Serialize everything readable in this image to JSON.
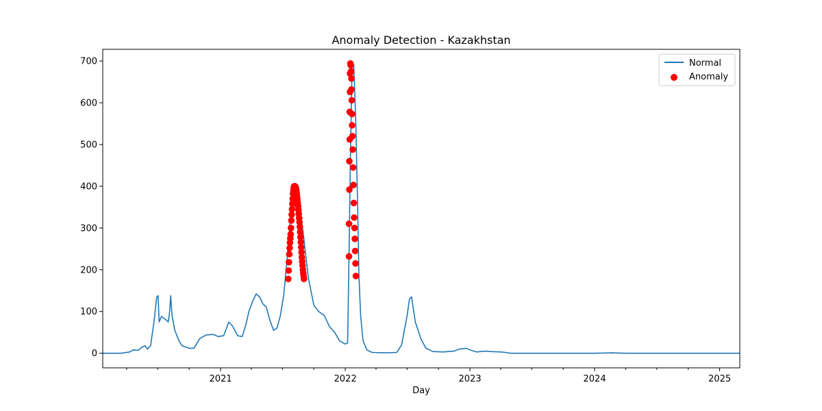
{
  "chart_data": {
    "type": "line",
    "title": "Anomaly Detection - Kazakhstan",
    "xlabel": "Day",
    "ylabel": "",
    "x_axis": {
      "kind": "date",
      "range": [
        "2020-01-22",
        "2025-03-01"
      ],
      "major_ticks": [
        "2021-01-01",
        "2022-01-01",
        "2023-01-01",
        "2024-01-01",
        "2025-01-01"
      ],
      "major_tick_labels": [
        "2021",
        "2022",
        "2023",
        "2024",
        "2025"
      ]
    },
    "y_axis": {
      "range": [
        -35,
        728
      ],
      "ticks": [
        0,
        100,
        200,
        300,
        400,
        500,
        600,
        700
      ],
      "tick_labels": [
        "0",
        "100",
        "200",
        "300",
        "400",
        "500",
        "600",
        "700"
      ]
    },
    "grid": false,
    "legend": {
      "position": "top-right",
      "entries": [
        "Normal",
        "Anomaly"
      ]
    },
    "colors": {
      "normal": "#1f77b4",
      "anomaly": "#ff0000"
    },
    "series": [
      {
        "name": "Normal",
        "kind": "line",
        "points": [
          [
            "2020-01-22",
            0
          ],
          [
            "2020-03-15",
            0
          ],
          [
            "2020-04-10",
            3
          ],
          [
            "2020-04-20",
            8
          ],
          [
            "2020-05-05",
            7
          ],
          [
            "2020-05-15",
            14
          ],
          [
            "2020-05-25",
            18
          ],
          [
            "2020-06-01",
            10
          ],
          [
            "2020-06-10",
            18
          ],
          [
            "2020-06-20",
            75
          ],
          [
            "2020-06-28",
            135
          ],
          [
            "2020-07-02",
            138
          ],
          [
            "2020-07-05",
            75
          ],
          [
            "2020-07-12",
            88
          ],
          [
            "2020-07-25",
            80
          ],
          [
            "2020-08-01",
            75
          ],
          [
            "2020-08-05",
            100
          ],
          [
            "2020-08-08",
            138
          ],
          [
            "2020-08-12",
            90
          ],
          [
            "2020-08-20",
            55
          ],
          [
            "2020-09-01",
            30
          ],
          [
            "2020-09-10",
            18
          ],
          [
            "2020-10-01",
            12
          ],
          [
            "2020-10-15",
            12
          ],
          [
            "2020-11-01",
            35
          ],
          [
            "2020-11-20",
            44
          ],
          [
            "2020-12-10",
            45
          ],
          [
            "2020-12-25",
            40
          ],
          [
            "2021-01-10",
            42
          ],
          [
            "2021-01-25",
            75
          ],
          [
            "2021-02-05",
            65
          ],
          [
            "2021-02-20",
            42
          ],
          [
            "2021-03-05",
            40
          ],
          [
            "2021-03-15",
            65
          ],
          [
            "2021-03-25",
            100
          ],
          [
            "2021-04-05",
            125
          ],
          [
            "2021-04-15",
            142
          ],
          [
            "2021-04-25",
            135
          ],
          [
            "2021-05-05",
            118
          ],
          [
            "2021-05-15",
            110
          ],
          [
            "2021-05-25",
            80
          ],
          [
            "2021-06-05",
            55
          ],
          [
            "2021-06-15",
            60
          ],
          [
            "2021-06-25",
            90
          ],
          [
            "2021-07-05",
            140
          ],
          [
            "2021-07-15",
            230
          ],
          [
            "2021-08-01",
            395
          ],
          [
            "2021-08-10",
            400
          ],
          [
            "2021-08-20",
            360
          ],
          [
            "2021-09-01",
            280
          ],
          [
            "2021-09-15",
            180
          ],
          [
            "2021-10-01",
            115
          ],
          [
            "2021-10-15",
            100
          ],
          [
            "2021-11-01",
            90
          ],
          [
            "2021-11-15",
            65
          ],
          [
            "2021-12-01",
            50
          ],
          [
            "2021-12-15",
            30
          ],
          [
            "2022-01-01",
            22
          ],
          [
            "2022-01-08",
            25
          ],
          [
            "2022-01-12",
            230
          ],
          [
            "2022-01-16",
            460
          ],
          [
            "2022-01-21",
            690
          ],
          [
            "2022-01-26",
            690
          ],
          [
            "2022-02-01",
            550
          ],
          [
            "2022-02-06",
            360
          ],
          [
            "2022-02-10",
            185
          ],
          [
            "2022-02-15",
            90
          ],
          [
            "2022-02-22",
            30
          ],
          [
            "2022-03-05",
            8
          ],
          [
            "2022-03-20",
            2
          ],
          [
            "2022-05-01",
            1
          ],
          [
            "2022-06-01",
            2
          ],
          [
            "2022-06-15",
            20
          ],
          [
            "2022-07-01",
            90
          ],
          [
            "2022-07-08",
            130
          ],
          [
            "2022-07-14",
            135
          ],
          [
            "2022-07-25",
            75
          ],
          [
            "2022-08-10",
            35
          ],
          [
            "2022-08-25",
            12
          ],
          [
            "2022-09-15",
            4
          ],
          [
            "2022-10-15",
            3
          ],
          [
            "2022-11-15",
            5
          ],
          [
            "2022-12-01",
            10
          ],
          [
            "2022-12-20",
            12
          ],
          [
            "2023-01-01",
            8
          ],
          [
            "2023-01-20",
            3
          ],
          [
            "2023-02-15",
            5
          ],
          [
            "2023-03-01",
            4
          ],
          [
            "2023-04-01",
            3
          ],
          [
            "2023-04-15",
            2
          ],
          [
            "2023-05-01",
            0
          ],
          [
            "2023-09-01",
            0
          ],
          [
            "2024-01-01",
            0
          ],
          [
            "2024-02-15",
            1
          ],
          [
            "2024-04-01",
            0
          ],
          [
            "2025-03-01",
            0
          ]
        ]
      },
      {
        "name": "Anomaly",
        "kind": "scatter",
        "points": [
          [
            "2021-07-18",
            178
          ],
          [
            "2021-07-19",
            198
          ],
          [
            "2021-07-20",
            218
          ],
          [
            "2021-07-21",
            237
          ],
          [
            "2021-07-22",
            252
          ],
          [
            "2021-07-23",
            265
          ],
          [
            "2021-07-24",
            275
          ],
          [
            "2021-07-25",
            285
          ],
          [
            "2021-07-26",
            300
          ],
          [
            "2021-07-27",
            318
          ],
          [
            "2021-07-28",
            332
          ],
          [
            "2021-07-29",
            345
          ],
          [
            "2021-07-30",
            358
          ],
          [
            "2021-07-31",
            370
          ],
          [
            "2021-08-01",
            382
          ],
          [
            "2021-08-02",
            390
          ],
          [
            "2021-08-03",
            396
          ],
          [
            "2021-08-04",
            399
          ],
          [
            "2021-08-05",
            400
          ],
          [
            "2021-08-06",
            400
          ],
          [
            "2021-08-07",
            400
          ],
          [
            "2021-08-08",
            399
          ],
          [
            "2021-08-09",
            397
          ],
          [
            "2021-08-10",
            393
          ],
          [
            "2021-08-11",
            388
          ],
          [
            "2021-08-12",
            382
          ],
          [
            "2021-08-13",
            375
          ],
          [
            "2021-08-14",
            368
          ],
          [
            "2021-08-15",
            360
          ],
          [
            "2021-08-16",
            352
          ],
          [
            "2021-08-17",
            343
          ],
          [
            "2021-08-18",
            334
          ],
          [
            "2021-08-19",
            324
          ],
          [
            "2021-08-20",
            314
          ],
          [
            "2021-08-21",
            303
          ],
          [
            "2021-08-22",
            290
          ],
          [
            "2021-08-23",
            278
          ],
          [
            "2021-08-24",
            266
          ],
          [
            "2021-08-25",
            254
          ],
          [
            "2021-08-26",
            242
          ],
          [
            "2021-08-27",
            230
          ],
          [
            "2021-08-28",
            220
          ],
          [
            "2021-08-29",
            210
          ],
          [
            "2021-08-30",
            200
          ],
          [
            "2021-08-31",
            192
          ],
          [
            "2021-09-01",
            185
          ],
          [
            "2021-09-02",
            178
          ],
          [
            "2022-01-12",
            232
          ],
          [
            "2022-01-12",
            310
          ],
          [
            "2022-01-13",
            392
          ],
          [
            "2022-01-13",
            460
          ],
          [
            "2022-01-14",
            512
          ],
          [
            "2022-01-14",
            578
          ],
          [
            "2022-01-15",
            626
          ],
          [
            "2022-01-15",
            670
          ],
          [
            "2022-01-16",
            694
          ],
          [
            "2022-01-17",
            690
          ],
          [
            "2022-01-18",
            675
          ],
          [
            "2022-01-19",
            658
          ],
          [
            "2022-01-19",
            632
          ],
          [
            "2022-01-20",
            606
          ],
          [
            "2022-01-21",
            573
          ],
          [
            "2022-01-21",
            546
          ],
          [
            "2022-01-22",
            520
          ],
          [
            "2022-01-23",
            488
          ],
          [
            "2022-01-24",
            445
          ],
          [
            "2022-01-25",
            403
          ],
          [
            "2022-01-26",
            360
          ],
          [
            "2022-01-27",
            325
          ],
          [
            "2022-01-28",
            300
          ],
          [
            "2022-01-29",
            274
          ],
          [
            "2022-01-30",
            245
          ],
          [
            "2022-01-31",
            215
          ],
          [
            "2022-02-01",
            185
          ]
        ]
      }
    ]
  }
}
